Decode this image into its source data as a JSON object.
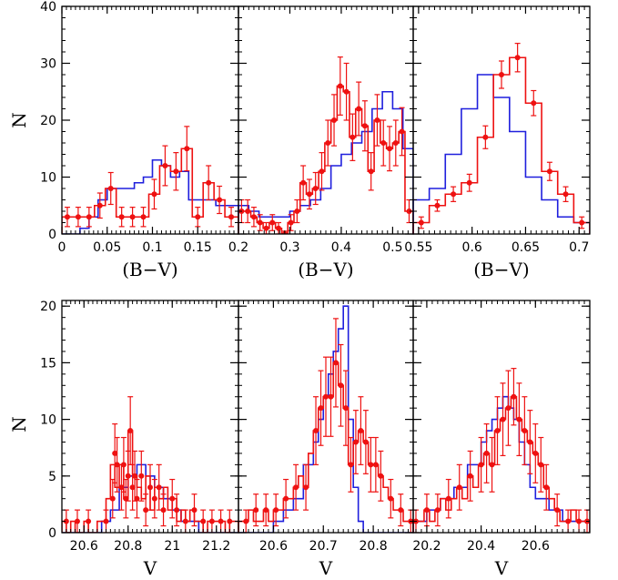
{
  "ylabel": "N",
  "colors": {
    "blue": "#1f1fdd",
    "red": "#ee1111",
    "axis": "#000000"
  },
  "chart_data": [
    {
      "type": "histogram",
      "panel": "top-left",
      "xlabel": "(B−V)",
      "xlim": [
        0,
        0.195
      ],
      "ylim": [
        0,
        40
      ],
      "xticks": [
        "0",
        "0.05",
        "0.1",
        "0.15"
      ],
      "xtick_values": [
        0,
        0.05,
        0.1,
        0.15
      ],
      "yticks": [
        "0",
        "10",
        "20",
        "30",
        "40"
      ],
      "ytick_values": [
        0,
        10,
        20,
        30,
        40
      ],
      "blue": {
        "edges": [
          0,
          0.01,
          0.02,
          0.03,
          0.04,
          0.05,
          0.06,
          0.07,
          0.08,
          0.09,
          0.1,
          0.11,
          0.12,
          0.13,
          0.14,
          0.15,
          0.16,
          0.17,
          0.18,
          0.195
        ],
        "counts": [
          0,
          0,
          1,
          3,
          6,
          8,
          8,
          8,
          9,
          10,
          13,
          12,
          10,
          11,
          6,
          6,
          6,
          5,
          5
        ]
      },
      "red": {
        "edges": [
          0,
          0.012,
          0.024,
          0.036,
          0.048,
          0.06,
          0.072,
          0.084,
          0.096,
          0.108,
          0.12,
          0.132,
          0.144,
          0.156,
          0.168,
          0.18,
          0.195
        ],
        "counts": [
          3,
          3,
          3,
          5,
          8,
          3,
          3,
          3,
          7,
          12,
          11,
          15,
          3,
          9,
          6,
          3
        ]
      },
      "points": {
        "x": [
          0.006,
          0.018,
          0.03,
          0.042,
          0.054,
          0.066,
          0.078,
          0.09,
          0.102,
          0.114,
          0.126,
          0.138,
          0.15,
          0.162,
          0.174,
          0.187
        ],
        "y": [
          3,
          3,
          3,
          5,
          8,
          3,
          3,
          3,
          7,
          12,
          11,
          15,
          3,
          9,
          6,
          3
        ],
        "err": [
          1.7,
          1.7,
          1.7,
          2.2,
          2.8,
          1.7,
          1.7,
          1.7,
          2.6,
          3.5,
          3.3,
          3.9,
          1.7,
          3,
          2.4,
          1.7
        ]
      }
    },
    {
      "type": "histogram",
      "panel": "top-middle",
      "xlabel": "(B−V)",
      "xlim": [
        0.2,
        0.54
      ],
      "ylim": [
        0,
        40
      ],
      "xticks": [
        "0.2",
        "0.3",
        "0.4",
        "0.5"
      ],
      "xtick_values": [
        0.2,
        0.3,
        0.4,
        0.5
      ],
      "blue": {
        "edges": [
          0.2,
          0.22,
          0.24,
          0.26,
          0.28,
          0.3,
          0.32,
          0.34,
          0.36,
          0.38,
          0.4,
          0.42,
          0.44,
          0.46,
          0.48,
          0.5,
          0.52,
          0.54
        ],
        "counts": [
          5,
          4,
          3,
          3,
          3,
          4,
          5,
          6,
          8,
          12,
          14,
          16,
          18,
          22,
          25,
          22,
          15
        ]
      },
      "red": {
        "edges": [
          0.2,
          0.212,
          0.224,
          0.236,
          0.248,
          0.26,
          0.272,
          0.284,
          0.296,
          0.308,
          0.32,
          0.332,
          0.344,
          0.356,
          0.368,
          0.38,
          0.392,
          0.404,
          0.416,
          0.428,
          0.44,
          0.452,
          0.464,
          0.476,
          0.488,
          0.5,
          0.512,
          0.524,
          0.54
        ],
        "counts": [
          4,
          4,
          3,
          2,
          1,
          2,
          1,
          0,
          2,
          4,
          9,
          7,
          8,
          11,
          16,
          20,
          26,
          25,
          17,
          22,
          19,
          11,
          20,
          16,
          15,
          16,
          18,
          4
        ]
      },
      "points": {
        "x": [
          0.206,
          0.218,
          0.23,
          0.242,
          0.254,
          0.266,
          0.278,
          0.29,
          0.302,
          0.314,
          0.326,
          0.338,
          0.35,
          0.362,
          0.374,
          0.386,
          0.398,
          0.41,
          0.422,
          0.434,
          0.446,
          0.458,
          0.47,
          0.482,
          0.494,
          0.506,
          0.518,
          0.532
        ],
        "y": [
          4,
          4,
          3,
          2,
          1,
          2,
          1,
          0,
          2,
          4,
          9,
          7,
          8,
          11,
          16,
          20,
          26,
          25,
          17,
          22,
          19,
          11,
          20,
          16,
          15,
          16,
          18,
          4
        ],
        "err": [
          2,
          2,
          1.7,
          1.4,
          1,
          1.4,
          1,
          0.5,
          1.4,
          2,
          3,
          2.6,
          2.8,
          3.3,
          4,
          4.5,
          5.1,
          5,
          4.1,
          4.7,
          4.4,
          3.3,
          4.5,
          4,
          3.9,
          4,
          4.2,
          2
        ]
      }
    },
    {
      "type": "histogram",
      "panel": "top-right",
      "xlabel": "(B−V)",
      "xlim": [
        0.545,
        0.71
      ],
      "ylim": [
        0,
        40
      ],
      "xticks": [
        "0.55",
        "0.6",
        "0.65",
        "0.7"
      ],
      "xtick_values": [
        0.55,
        0.6,
        0.65,
        0.7
      ],
      "blue": {
        "edges": [
          0.545,
          0.56,
          0.575,
          0.59,
          0.605,
          0.62,
          0.635,
          0.65,
          0.665,
          0.68,
          0.695,
          0.71
        ],
        "counts": [
          6,
          8,
          14,
          22,
          28,
          24,
          18,
          10,
          6,
          3,
          2
        ]
      },
      "red": {
        "edges": [
          0.545,
          0.56,
          0.575,
          0.59,
          0.605,
          0.62,
          0.635,
          0.65,
          0.665,
          0.68,
          0.695,
          0.71
        ],
        "counts": [
          2,
          5,
          7,
          9,
          17,
          28,
          31,
          23,
          11,
          7,
          2
        ]
      },
      "points": {
        "x": [
          0.5525,
          0.5675,
          0.5825,
          0.5975,
          0.6125,
          0.6275,
          0.6425,
          0.6575,
          0.6725,
          0.6875,
          0.7025
        ],
        "y": [
          2,
          5,
          7,
          9,
          17,
          28,
          31,
          23,
          11,
          7,
          2
        ],
        "err": [
          1,
          1,
          1.3,
          1.5,
          2,
          2.4,
          2.5,
          2.2,
          1.6,
          1.3,
          1
        ]
      }
    },
    {
      "type": "histogram",
      "panel": "bottom-left",
      "xlabel": "V",
      "xlim": [
        20.5,
        21.3
      ],
      "ylim": [
        0,
        20.5
      ],
      "xticks": [
        "20.6",
        "20.8",
        "21",
        "21.2"
      ],
      "xtick_values": [
        20.6,
        20.8,
        21,
        21.2
      ],
      "yticks": [
        "0",
        "5",
        "10",
        "15",
        "20"
      ],
      "ytick_values": [
        0,
        5,
        10,
        15,
        20
      ],
      "blue": {
        "edges": [
          20.5,
          20.6,
          20.68,
          20.72,
          20.76,
          20.8,
          20.84,
          20.88,
          20.92,
          20.96,
          21.0,
          21.04,
          21.08,
          21.12,
          21.2,
          21.3
        ],
        "counts": [
          0,
          0,
          1,
          2,
          4,
          5,
          6,
          5,
          4,
          3,
          2,
          1,
          1,
          0,
          0
        ]
      },
      "red": {
        "edges": [
          20.5,
          20.52,
          20.54,
          20.56,
          20.58,
          20.6,
          20.62,
          20.64,
          20.66,
          20.68,
          20.7,
          20.72,
          20.74,
          20.76,
          20.78,
          20.8,
          20.82,
          20.84,
          20.86,
          20.88,
          20.9,
          20.92,
          20.94,
          20.96,
          20.98,
          21.0,
          21.02,
          21.04,
          21.06,
          21.08,
          21.1,
          21.12,
          21.14,
          21.16,
          21.18,
          21.2,
          21.22,
          21.24,
          21.26,
          21.28,
          21.3
        ],
        "counts": [
          1,
          0,
          1,
          0,
          0,
          1,
          0,
          0,
          1,
          1,
          3,
          6,
          4,
          6,
          3,
          9,
          5,
          4,
          3,
          5,
          2,
          4,
          3,
          4,
          2,
          3,
          1,
          2,
          1,
          2,
          1,
          1,
          0,
          1,
          1,
          1,
          1,
          0,
          1,
          1
        ]
      },
      "points": {
        "x": [
          20.52,
          20.57,
          20.62,
          20.7,
          20.73,
          20.74,
          20.75,
          20.77,
          20.78,
          20.79,
          20.8,
          20.81,
          20.82,
          20.83,
          20.84,
          20.86,
          20.88,
          20.9,
          20.92,
          20.94,
          20.96,
          21.0,
          21.02,
          21.06,
          21.1,
          21.14,
          21.18,
          21.22,
          21.26
        ],
        "y": [
          1,
          1,
          1,
          1,
          3,
          7,
          6,
          4,
          6,
          3,
          5,
          9,
          4,
          5,
          3,
          5,
          2,
          4,
          3,
          4,
          2,
          3,
          2,
          1,
          2,
          1,
          1,
          1,
          1
        ],
        "err": [
          1,
          1,
          1,
          1,
          1.7,
          2.6,
          2.4,
          2,
          2.4,
          1.7,
          2.2,
          3,
          2,
          2.2,
          1.7,
          2.2,
          1.4,
          2,
          1.7,
          2,
          1.4,
          1.7,
          1.4,
          1,
          1.4,
          1,
          1,
          1,
          1
        ]
      }
    },
    {
      "type": "histogram",
      "panel": "bottom-middle",
      "xlabel": "V",
      "xlim": [
        20.53,
        20.88
      ],
      "ylim": [
        0,
        20.5
      ],
      "xticks": [
        "20.6",
        "20.7",
        "20.8"
      ],
      "xtick_values": [
        20.6,
        20.7,
        20.8
      ],
      "blue": {
        "edges": [
          20.53,
          20.6,
          20.62,
          20.64,
          20.66,
          20.68,
          20.69,
          20.7,
          20.71,
          20.72,
          20.73,
          20.74,
          20.75,
          20.76,
          20.77,
          20.78,
          20.79,
          20.8,
          20.88
        ],
        "counts": [
          0,
          1,
          2,
          3,
          6,
          8,
          10,
          12,
          14,
          16,
          18,
          20,
          10,
          4,
          1,
          0,
          0,
          0
        ]
      },
      "red": {
        "edges": [
          20.53,
          20.54,
          20.55,
          20.56,
          20.57,
          20.58,
          20.59,
          20.6,
          20.61,
          20.62,
          20.63,
          20.64,
          20.65,
          20.66,
          20.67,
          20.68,
          20.69,
          20.7,
          20.71,
          20.72,
          20.73,
          20.74,
          20.75,
          20.76,
          20.77,
          20.78,
          20.79,
          20.8,
          20.81,
          20.82,
          20.83,
          20.84,
          20.85,
          20.86,
          20.87,
          20.88
        ],
        "counts": [
          1,
          1,
          2,
          1,
          1,
          2,
          1,
          2,
          2,
          3,
          3,
          4,
          5,
          4,
          7,
          9,
          11,
          12,
          12,
          15,
          13,
          11,
          6,
          8,
          9,
          8,
          6,
          6,
          5,
          4,
          3,
          2,
          2,
          1,
          1
        ]
      },
      "points": {
        "x": [
          20.545,
          20.565,
          20.585,
          20.605,
          20.625,
          20.645,
          20.665,
          20.685,
          20.695,
          20.705,
          20.715,
          20.725,
          20.735,
          20.745,
          20.755,
          20.765,
          20.775,
          20.785,
          20.795,
          20.805,
          20.815,
          20.835,
          20.855,
          20.875
        ],
        "y": [
          1,
          2,
          2,
          2,
          3,
          4,
          4,
          9,
          11,
          12,
          12,
          15,
          13,
          11,
          6,
          8,
          9,
          8,
          6,
          6,
          5,
          3,
          2,
          1
        ],
        "err": [
          1,
          1.4,
          1.4,
          1.4,
          1.7,
          2,
          2,
          3,
          3.3,
          3.5,
          3.5,
          3.9,
          3.6,
          3.3,
          2.4,
          2.8,
          3,
          2.8,
          2.4,
          2.4,
          2.2,
          1.7,
          1.4,
          1
        ]
      }
    },
    {
      "type": "histogram",
      "panel": "bottom-right",
      "xlabel": "V",
      "xlim": [
        20.15,
        20.8
      ],
      "ylim": [
        0,
        20.5
      ],
      "xticks": [
        "20.2",
        "20.4",
        "20.6"
      ],
      "xtick_values": [
        20.2,
        20.4,
        20.6
      ],
      "blue": {
        "edges": [
          20.15,
          20.2,
          20.25,
          20.3,
          20.35,
          20.4,
          20.42,
          20.44,
          20.46,
          20.48,
          20.5,
          20.52,
          20.54,
          20.56,
          20.58,
          20.6,
          20.65,
          20.7,
          20.8
        ],
        "counts": [
          1,
          2,
          3,
          4,
          6,
          8,
          9,
          10,
          11,
          12,
          11,
          10,
          8,
          6,
          4,
          3,
          2,
          1
        ]
      },
      "red": {
        "edges": [
          20.15,
          20.17,
          20.19,
          20.21,
          20.23,
          20.25,
          20.27,
          20.29,
          20.31,
          20.33,
          20.35,
          20.37,
          20.39,
          20.41,
          20.43,
          20.45,
          20.47,
          20.49,
          20.51,
          20.53,
          20.55,
          20.57,
          20.59,
          20.61,
          20.63,
          20.65,
          20.67,
          20.69,
          20.71,
          20.73,
          20.75,
          20.77,
          20.8
        ],
        "counts": [
          1,
          1,
          2,
          1,
          2,
          3,
          2,
          3,
          4,
          3,
          5,
          4,
          6,
          7,
          6,
          9,
          10,
          11,
          12,
          10,
          9,
          8,
          7,
          6,
          4,
          3,
          2,
          1,
          1,
          2,
          1,
          1
        ]
      },
      "points": {
        "x": [
          20.16,
          20.2,
          20.24,
          20.28,
          20.32,
          20.36,
          20.4,
          20.42,
          20.44,
          20.46,
          20.48,
          20.5,
          20.52,
          20.54,
          20.56,
          20.58,
          20.6,
          20.62,
          20.64,
          20.68,
          20.72,
          20.76,
          20.79
        ],
        "y": [
          1,
          2,
          2,
          3,
          4,
          5,
          6,
          7,
          6,
          9,
          10,
          11,
          12,
          10,
          9,
          8,
          7,
          6,
          4,
          2,
          1,
          1,
          1
        ],
        "err": [
          1,
          1.4,
          1.4,
          1.7,
          2,
          2.2,
          2.4,
          2.6,
          2.4,
          3,
          3.2,
          3.3,
          2.5,
          3.2,
          3,
          2.8,
          2.6,
          2.4,
          2,
          1.4,
          1,
          1,
          1
        ]
      }
    }
  ]
}
